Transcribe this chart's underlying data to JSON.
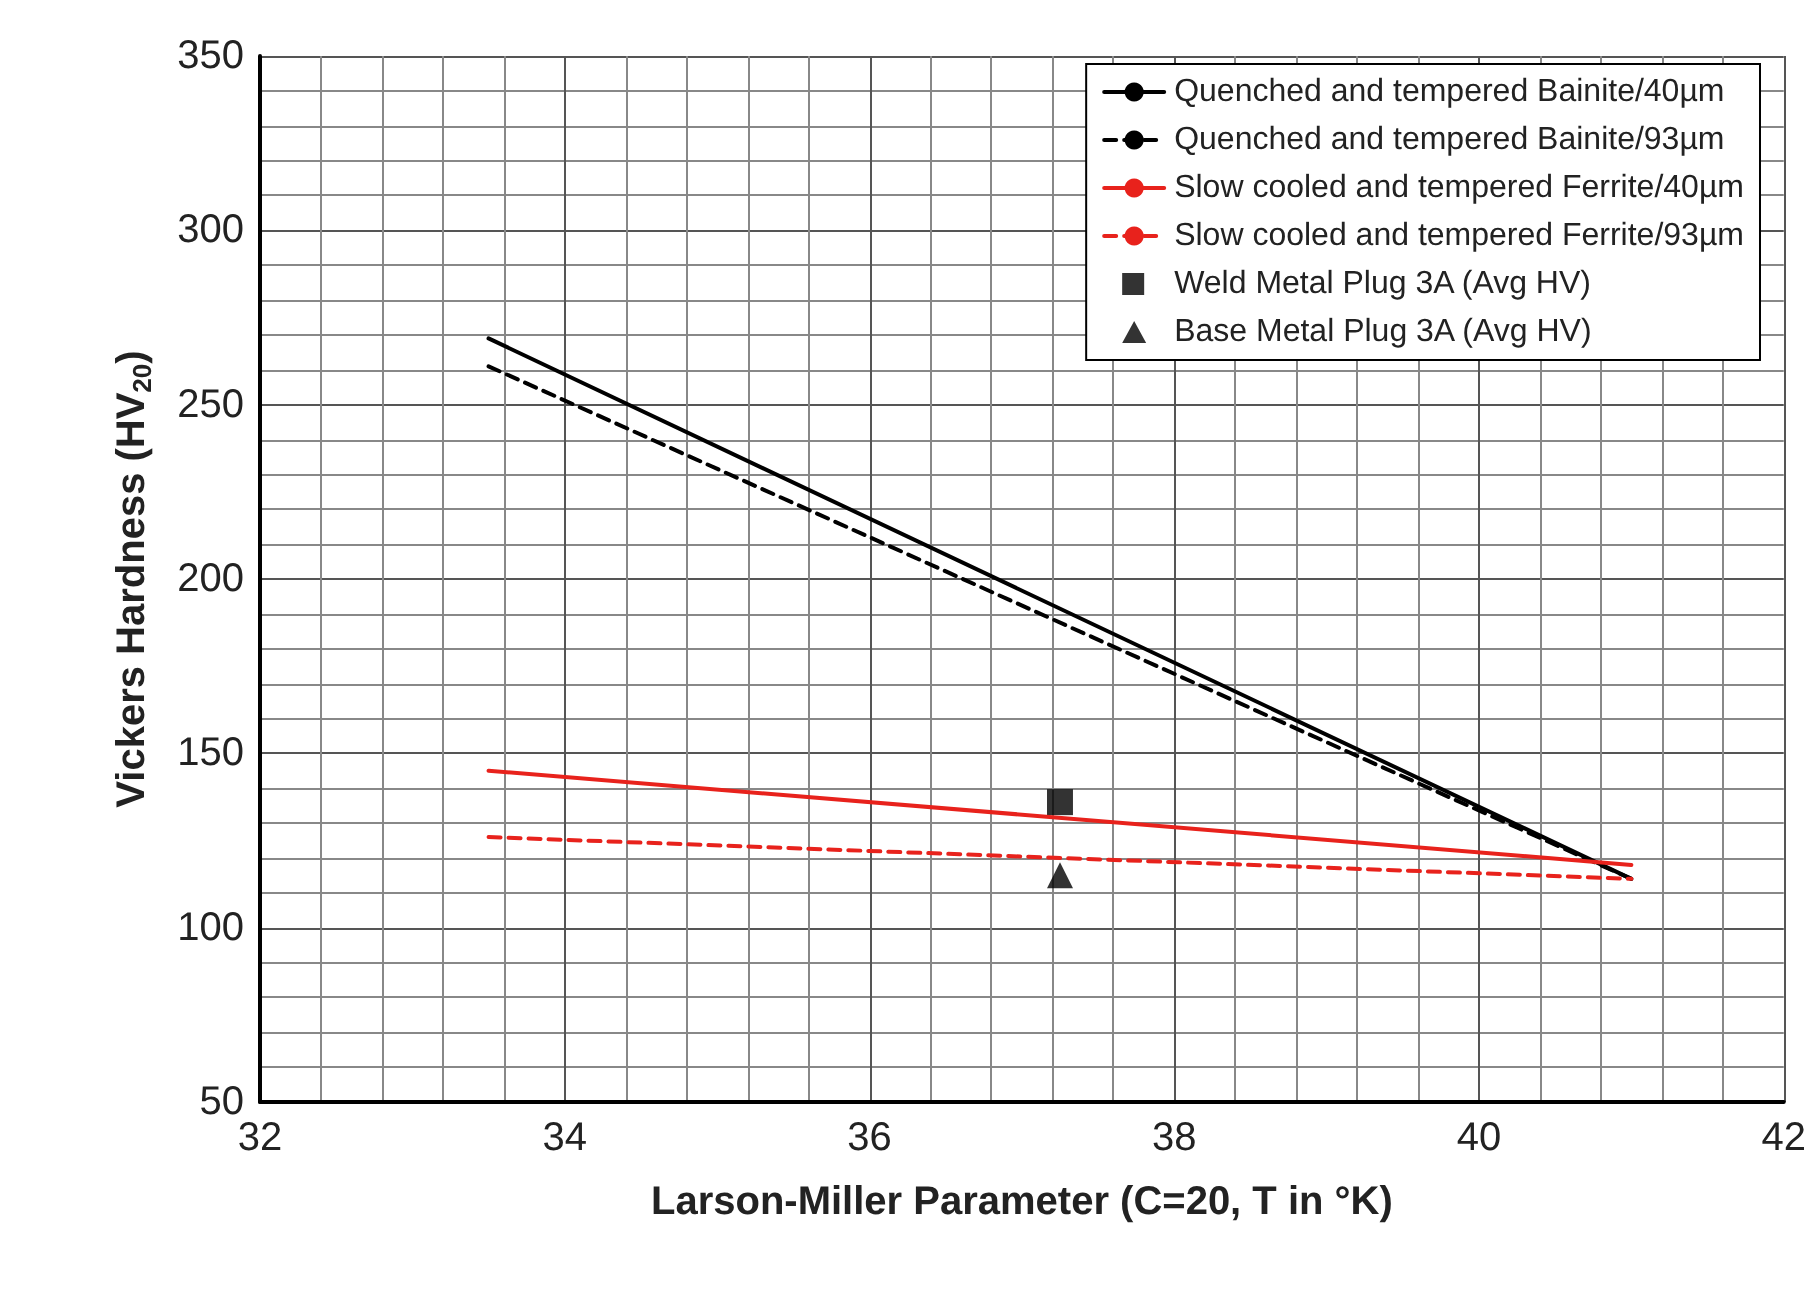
{
  "chart_data": {
    "type": "line",
    "xlabel": "Larson-Miller Parameter (C=20, T in °K)",
    "ylabel": "Vickers Hardness (HV$_{20}$)",
    "xlim": [
      32,
      42
    ],
    "xticks": [
      32,
      34,
      36,
      38,
      40,
      42
    ],
    "ylim": [
      50,
      350
    ],
    "yticks": [
      50,
      100,
      150,
      200,
      250,
      300,
      350
    ],
    "grid": true,
    "legend": "top right",
    "series": [
      {
        "name": "Quenched and tempered Bainite/40µm",
        "color": "#000000",
        "line_style": "solid",
        "marker": "none",
        "x": [
          33.5,
          41.0
        ],
        "values": [
          269,
          114
        ]
      },
      {
        "name": "Quenched and tempered Bainite/93µm",
        "color": "#000000",
        "line_style": "dashed",
        "marker": "none",
        "x": [
          33.5,
          41.0
        ],
        "values": [
          261,
          114
        ]
      },
      {
        "name": "Slow cooled and tempered Ferrite/40µm",
        "color": "#e8221c",
        "line_style": "solid",
        "marker": "none",
        "x": [
          33.5,
          41.0
        ],
        "values": [
          145,
          118
        ]
      },
      {
        "name": "Slow cooled and tempered Ferrite/93µm",
        "color": "#e8221c",
        "line_style": "dashed",
        "marker": "none",
        "x": [
          33.5,
          41.0
        ],
        "values": [
          126,
          114
        ]
      },
      {
        "name": "Weld Metal Plug 3A (Avg HV)",
        "type": "scatter",
        "color": "#000000",
        "marker": "square",
        "x": [
          37.25
        ],
        "values": [
          136
        ]
      },
      {
        "name": "Base Metal Plug 3A (Avg HV)",
        "type": "scatter",
        "color": "#000000",
        "marker": "triangle",
        "x": [
          37.25
        ],
        "values": [
          115
        ]
      }
    ]
  }
}
